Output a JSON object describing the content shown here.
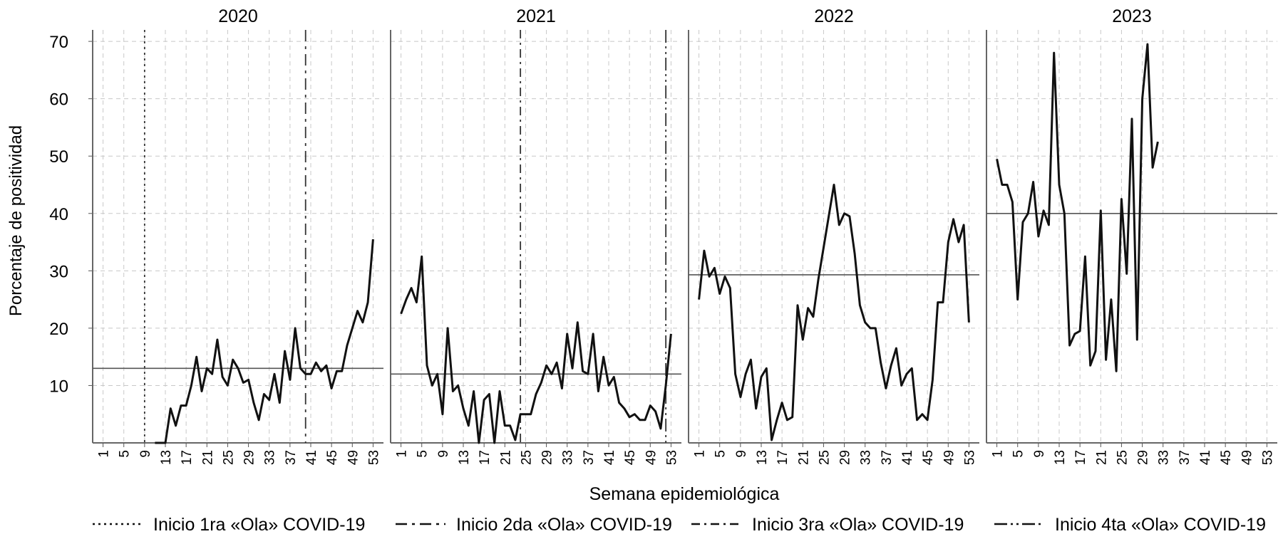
{
  "chart_data": {
    "type": "line",
    "ylabel": "Porcentaje de positividad",
    "xlabel": "Semana epidemiológica",
    "ylim": [
      0,
      72
    ],
    "yticks": [
      10,
      20,
      30,
      40,
      50,
      60,
      70
    ],
    "xlim": [
      -1,
      55
    ],
    "xticks": [
      1,
      5,
      9,
      13,
      17,
      21,
      25,
      29,
      33,
      37,
      41,
      45,
      49,
      53
    ],
    "grid": true,
    "legend_position": "bottom",
    "panels": [
      {
        "title": "2020",
        "reference_line": 13,
        "series": [
          {
            "x": [
              11,
              12,
              13,
              14,
              15,
              16,
              17,
              18,
              19,
              20,
              21,
              22,
              23,
              24,
              25,
              26,
              27,
              28,
              29,
              30,
              31,
              32,
              33,
              34,
              35,
              36,
              37,
              38,
              39,
              40,
              41,
              42,
              43,
              44,
              45,
              46,
              47,
              48,
              49,
              50,
              51,
              52,
              53
            ],
            "y": [
              0,
              0,
              0,
              6,
              3,
              6.5,
              6.5,
              10,
              15,
              9,
              13,
              12,
              18,
              11.5,
              10,
              14.5,
              13,
              10.5,
              11,
              7,
              4,
              8.5,
              7.5,
              12,
              7,
              16,
              11,
              20,
              13,
              12,
              12,
              14,
              12.5,
              13.5,
              9.5,
              12.5,
              12.5,
              17,
              20,
              23,
              21,
              24.5,
              35.5
            ]
          }
        ]
      },
      {
        "title": "2021",
        "reference_line": 12,
        "series": [
          {
            "x": [
              1,
              2,
              3,
              4,
              5,
              6,
              7,
              8,
              9,
              10,
              11,
              12,
              13,
              14,
              15,
              16,
              17,
              18,
              19,
              20,
              21,
              22,
              23,
              24,
              25,
              26,
              27,
              28,
              29,
              30,
              31,
              32,
              33,
              34,
              35,
              36,
              37,
              38,
              39,
              40,
              41,
              42,
              43,
              44,
              45,
              46,
              47,
              48,
              49,
              50,
              51,
              52,
              53
            ],
            "y": [
              22.5,
              25,
              27,
              24.5,
              32.5,
              13.5,
              10,
              12,
              5,
              20,
              9,
              10,
              6,
              3,
              9,
              0,
              7.5,
              8.5,
              0,
              9,
              3,
              3,
              0.5,
              5,
              5,
              5,
              8.5,
              10.5,
              13.5,
              12,
              14,
              9.5,
              19,
              13,
              21,
              12.5,
              12,
              19,
              9,
              15,
              10,
              11.5,
              7,
              6,
              4.5,
              5,
              4,
              4,
              6.5,
              5.5,
              2.5,
              10,
              19
            ]
          }
        ]
      },
      {
        "title": "2022",
        "reference_line": 29.3,
        "series": [
          {
            "x": [
              1,
              2,
              3,
              4,
              5,
              6,
              7,
              8,
              9,
              10,
              11,
              12,
              13,
              14,
              15,
              16,
              17,
              18,
              19,
              20,
              21,
              22,
              23,
              24,
              25,
              26,
              27,
              28,
              29,
              30,
              31,
              32,
              33,
              34,
              35,
              36,
              37,
              38,
              39,
              40,
              41,
              42,
              43,
              44,
              45,
              46,
              47,
              48,
              49,
              50,
              51,
              52,
              53
            ],
            "y": [
              25,
              33.5,
              29,
              30.5,
              26,
              29,
              27,
              12,
              8,
              12,
              14.5,
              6,
              11.5,
              13,
              0.5,
              4,
              7,
              4,
              4.5,
              24,
              18,
              23.5,
              22,
              28.5,
              34,
              39.5,
              45,
              38,
              40,
              39.5,
              33,
              24,
              21,
              20,
              20,
              14,
              9.5,
              13.5,
              16.5,
              10,
              12,
              13,
              4,
              5,
              4,
              11,
              24.5,
              24.5,
              35,
              39,
              35,
              38,
              21
            ]
          }
        ]
      },
      {
        "title": "2023",
        "reference_line": 40,
        "series": [
          {
            "x": [
              1,
              2,
              3,
              4,
              5,
              6,
              7,
              8,
              9,
              10,
              11,
              12,
              13,
              14,
              15,
              16,
              17,
              18,
              19,
              20,
              21,
              22,
              23,
              24,
              25,
              26,
              27,
              28,
              29,
              30,
              31,
              32
            ],
            "y": [
              49.5,
              45,
              45,
              42,
              25,
              38.5,
              40,
              45.5,
              36,
              40.5,
              38,
              68,
              45,
              40,
              17,
              19,
              19.5,
              32.5,
              13.5,
              16,
              40.5,
              14.5,
              25,
              12.5,
              42.5,
              29.5,
              56.5,
              18,
              60,
              69.5,
              48,
              52.5
            ]
          }
        ]
      }
    ],
    "markers": [
      {
        "panel": 0,
        "x": 9,
        "label": "Inicio 1ra «Ola» COVID-19",
        "dash": "dotted"
      },
      {
        "panel": 0,
        "x": 40,
        "label": "Inicio 2da «Ola» COVID-19",
        "dash": "longdash-dot"
      },
      {
        "panel": 1,
        "x": 24,
        "label": "Inicio 3ra «Ola» COVID-19",
        "dash": "dash-dot"
      },
      {
        "panel": 1,
        "x": 52,
        "label": "Inicio 4ta «Ola» COVID-19",
        "dash": "longdash-dotdot"
      }
    ]
  },
  "legend": [
    {
      "label": "Inicio 1ra «Ola» COVID-19",
      "dash": "dotted"
    },
    {
      "label": "Inicio 2da «Ola» COVID-19",
      "dash": "longdash-dot"
    },
    {
      "label": "Inicio 3ra «Ola» COVID-19",
      "dash": "dash-dot"
    },
    {
      "label": "Inicio 4ta «Ola» COVID-19",
      "dash": "longdash-dotdot"
    }
  ]
}
